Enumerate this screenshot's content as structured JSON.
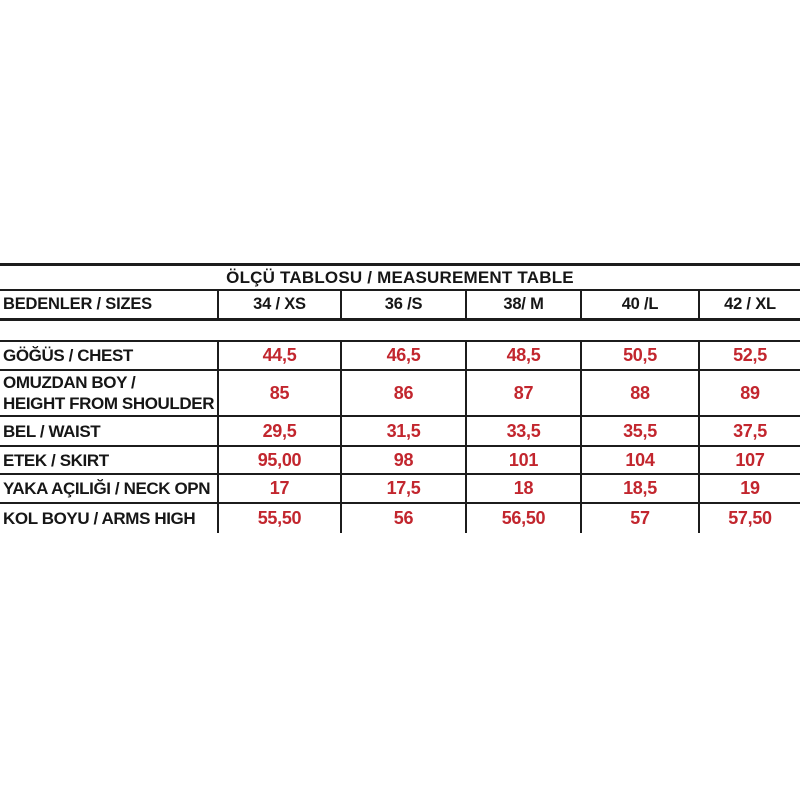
{
  "table": {
    "title": "ÖLÇÜ TABLOSU / MEASUREMENT TABLE",
    "header": {
      "row_label": "BEDENLER / SIZES",
      "sizes": [
        "34 / XS",
        "36 /S",
        "38/ M",
        "40 /L",
        "42 / XL"
      ]
    },
    "rows": [
      {
        "label": "GÖĞÜS / CHEST",
        "values": [
          "44,5",
          "46,5",
          "48,5",
          "50,5",
          "52,5"
        ]
      },
      {
        "label": "OMUZDAN BOY /",
        "label2": "HEIGHT FROM SHOULDER",
        "values": [
          "85",
          "86",
          "87",
          "88",
          "89"
        ]
      },
      {
        "label": "BEL / WAIST",
        "values": [
          "29,5",
          "31,5",
          "33,5",
          "35,5",
          "37,5"
        ]
      },
      {
        "label": "ETEK / SKIRT",
        "values": [
          "95,00",
          "98",
          "101",
          "104",
          "107"
        ]
      },
      {
        "label": "YAKA AÇILIĞI / NECK OPN",
        "values": [
          "17",
          "17,5",
          "18",
          "18,5",
          "19"
        ]
      },
      {
        "label": "KOL BOYU / ARMS HIGH",
        "values": [
          "55,50",
          "56",
          "56,50",
          "57",
          "57,50"
        ]
      }
    ],
    "colors": {
      "value_text": "#c2262e",
      "label_text": "#161616",
      "border": "#1c1c1c",
      "background": "#ffffff"
    }
  }
}
